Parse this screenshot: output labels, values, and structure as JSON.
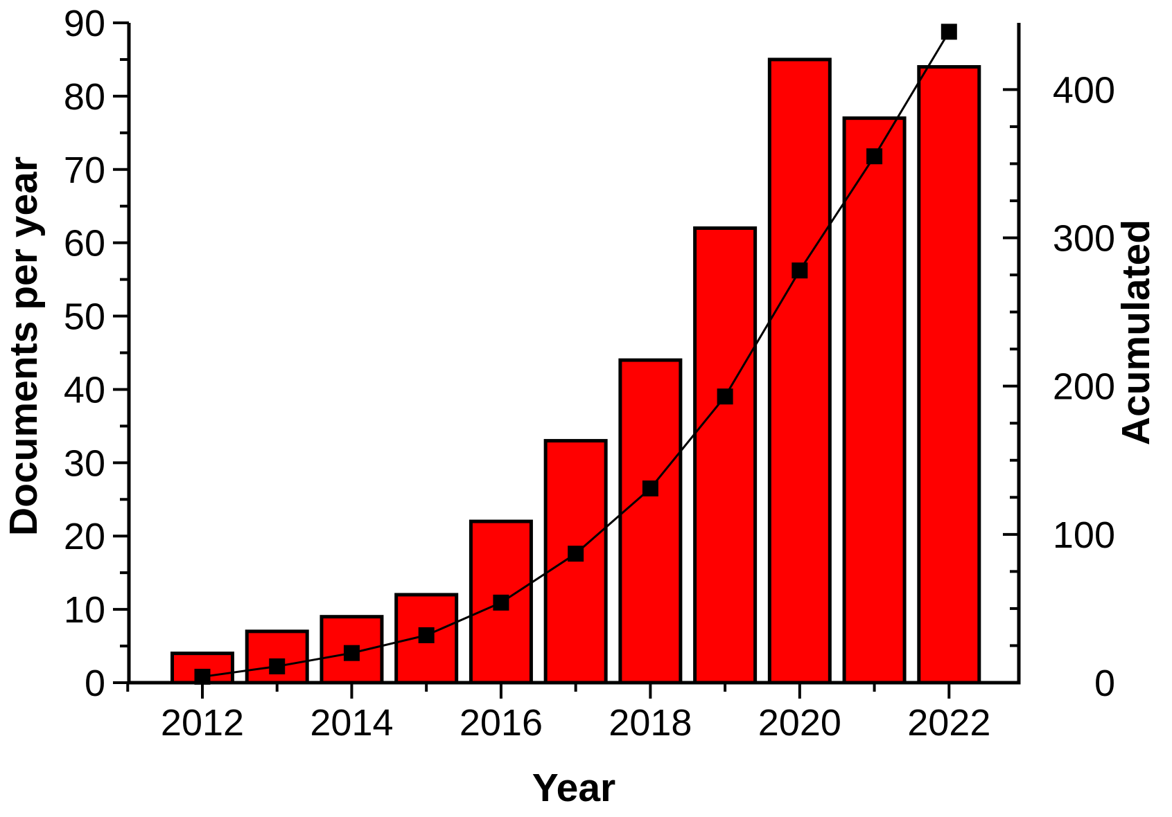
{
  "chart_data": {
    "type": "combo-bar-line",
    "title": "",
    "grid": false,
    "legend_position": "none",
    "background_color": "#ffffff",
    "x": [
      2012,
      2013,
      2014,
      2015,
      2016,
      2017,
      2018,
      2019,
      2020,
      2021,
      2022
    ],
    "series": [
      {
        "name": "Documents per year",
        "type": "bar",
        "axis": "left",
        "fill_color": "#ff0000",
        "stroke_color": "#000000",
        "values": [
          4,
          7,
          9,
          12,
          22,
          33,
          44,
          62,
          85,
          77,
          84
        ]
      },
      {
        "name": "Acumulated",
        "type": "line",
        "axis": "right",
        "marker": "square",
        "color": "#000000",
        "values": [
          4,
          11,
          20,
          32,
          54,
          87,
          131,
          193,
          278,
          355,
          439
        ]
      }
    ],
    "x_axis": {
      "label": "Year",
      "min": 2011,
      "max": 2022.94,
      "minor_step": 1,
      "major_step": 2,
      "labeled_ticks": [
        2012,
        2014,
        2016,
        2018,
        2020,
        2022
      ]
    },
    "left_axis": {
      "label": "Documents per year",
      "min": 0,
      "max": 90,
      "major_tick": 10,
      "minor_tick": 5,
      "tick_labels": [
        0,
        10,
        20,
        30,
        40,
        50,
        60,
        70,
        80,
        90
      ]
    },
    "right_axis": {
      "label": "Acumulated",
      "min": 0,
      "max": 445,
      "major_tick": 100,
      "minor_tick": 25,
      "tick_labels": [
        0,
        100,
        200,
        300,
        400
      ]
    }
  }
}
